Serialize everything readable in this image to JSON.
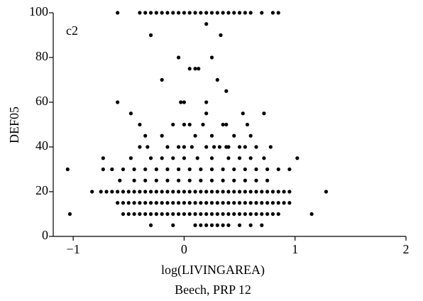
{
  "chart_data": {
    "type": "scatter",
    "subtitle": "Beech, PRP 12",
    "annotation": "c2",
    "x_label": "log(LIVINGAREA)",
    "y_label": "DEF05",
    "color": "#000000",
    "xlim": [
      -1.18,
      2
    ],
    "ylim": [
      0,
      100
    ],
    "xticks": [
      {
        "value": -1,
        "label": "−1"
      },
      0,
      1,
      2
    ],
    "yticks": [
      0,
      20,
      40,
      60,
      80,
      100
    ],
    "x": [
      -0.6,
      -0.4,
      -0.35,
      -0.3,
      -0.25,
      -0.2,
      -0.15,
      -0.1,
      -0.05,
      0,
      0.05,
      0.1,
      0.15,
      0.2,
      0.25,
      0.3,
      0.35,
      0.4,
      0.45,
      0.5,
      0.55,
      0.6,
      0.7,
      0.8,
      0.85,
      0.2,
      -0.3,
      0.33,
      -0.05,
      0.25,
      0.05,
      0.1,
      0.13,
      -0.2,
      0.3,
      0.38,
      -0.6,
      -0.03,
      0,
      0.2,
      -0.48,
      0.2,
      0.53,
      0.72,
      -0.4,
      -0.1,
      0,
      0.05,
      0.17,
      0.35,
      0.38,
      0.57,
      -0.35,
      -0.2,
      0.1,
      0.25,
      0.45,
      0.6,
      -0.4,
      -0.33,
      -0.15,
      -0.05,
      0,
      0.07,
      0.2,
      0.27,
      0.32,
      0.38,
      0.4,
      0.5,
      0.55,
      0.65,
      0.78,
      -0.73,
      -0.48,
      -0.3,
      -0.2,
      -0.1,
      0,
      0.12,
      0.25,
      0.4,
      0.5,
      0.6,
      0.72,
      1.02,
      -1.05,
      -0.73,
      -0.65,
      -0.55,
      -0.45,
      -0.35,
      -0.25,
      -0.15,
      -0.05,
      0.05,
      0.15,
      0.25,
      0.35,
      0.45,
      0.55,
      0.65,
      0.75,
      0.85,
      0.95,
      -0.58,
      -0.45,
      -0.35,
      -0.25,
      -0.15,
      -0.05,
      0.05,
      0.15,
      0.25,
      0.35,
      0.45,
      0.55,
      0.65,
      0.75,
      -0.83,
      -0.75,
      -0.7,
      -0.65,
      -0.6,
      -0.55,
      -0.5,
      -0.45,
      -0.4,
      -0.35,
      -0.3,
      -0.25,
      -0.2,
      -0.15,
      -0.1,
      -0.05,
      0,
      0.05,
      0.1,
      0.15,
      0.2,
      0.25,
      0.3,
      0.35,
      0.4,
      0.45,
      0.5,
      0.55,
      0.6,
      0.65,
      0.7,
      0.75,
      0.8,
      0.85,
      0.9,
      0.95,
      1.28,
      -0.6,
      -0.55,
      -0.5,
      -0.45,
      -0.4,
      -0.35,
      -0.3,
      -0.25,
      -0.2,
      -0.15,
      -0.1,
      -0.05,
      0,
      0.05,
      0.1,
      0.15,
      0.2,
      0.25,
      0.3,
      0.35,
      0.4,
      0.45,
      0.5,
      0.55,
      0.6,
      0.65,
      0.7,
      0.75,
      0.8,
      0.85,
      0.9,
      0.95,
      -1.03,
      -0.55,
      -0.5,
      -0.45,
      -0.4,
      -0.35,
      -0.3,
      -0.25,
      -0.2,
      -0.15,
      -0.1,
      -0.05,
      0,
      0.05,
      0.1,
      0.15,
      0.2,
      0.25,
      0.3,
      0.35,
      0.4,
      0.45,
      0.5,
      0.55,
      0.6,
      0.65,
      0.7,
      0.75,
      0.8,
      0.85,
      1.15,
      -0.3,
      -0.1,
      0.1,
      0.15,
      0.2,
      0.25,
      0.3,
      0.35,
      0.4,
      0.5,
      0.6,
      0.7
    ],
    "values": [
      100,
      100,
      100,
      100,
      100,
      100,
      100,
      100,
      100,
      100,
      100,
      100,
      100,
      100,
      100,
      100,
      100,
      100,
      100,
      100,
      100,
      100,
      100,
      100,
      100,
      95,
      90,
      90,
      80,
      80,
      75,
      75,
      75,
      70,
      70,
      65,
      60,
      60,
      60,
      60,
      55,
      55,
      55,
      55,
      50,
      50,
      50,
      50,
      50,
      50,
      50,
      50,
      45,
      45,
      45,
      45,
      45,
      45,
      40,
      40,
      40,
      40,
      40,
      40,
      40,
      40,
      40,
      40,
      40,
      40,
      40,
      40,
      40,
      35,
      35,
      35,
      35,
      35,
      35,
      35,
      35,
      35,
      35,
      35,
      35,
      35,
      30,
      30,
      30,
      30,
      30,
      30,
      30,
      30,
      30,
      30,
      30,
      30,
      30,
      30,
      30,
      30,
      30,
      30,
      30,
      25,
      25,
      25,
      25,
      25,
      25,
      25,
      25,
      25,
      25,
      25,
      25,
      25,
      25,
      20,
      20,
      20,
      20,
      20,
      20,
      20,
      20,
      20,
      20,
      20,
      20,
      20,
      20,
      20,
      20,
      20,
      20,
      20,
      20,
      20,
      20,
      20,
      20,
      20,
      20,
      20,
      20,
      20,
      20,
      20,
      20,
      20,
      20,
      20,
      20,
      20,
      15,
      15,
      15,
      15,
      15,
      15,
      15,
      15,
      15,
      15,
      15,
      15,
      15,
      15,
      15,
      15,
      15,
      15,
      15,
      15,
      15,
      15,
      15,
      15,
      15,
      15,
      15,
      15,
      15,
      15,
      15,
      15,
      10,
      10,
      10,
      10,
      10,
      10,
      10,
      10,
      10,
      10,
      10,
      10,
      10,
      10,
      10,
      10,
      10,
      10,
      10,
      10,
      10,
      10,
      10,
      10,
      10,
      10,
      10,
      10,
      10,
      10,
      10,
      5,
      5,
      5,
      5,
      5,
      5,
      5,
      5,
      5,
      5,
      5,
      5
    ]
  }
}
